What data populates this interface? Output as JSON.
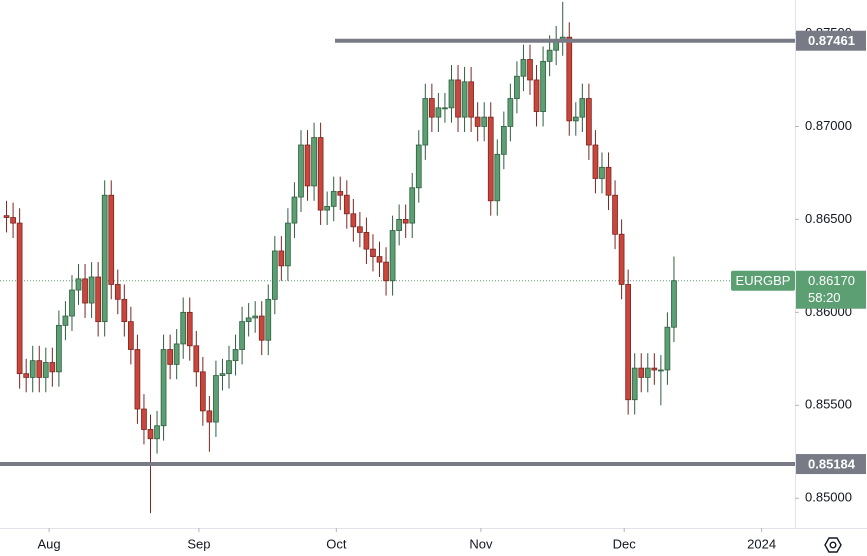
{
  "chart_data": {
    "type": "candlestick",
    "symbol": "EURGBP",
    "countdown": "58:20",
    "last_price": {
      "value": 0.8617,
      "label": "0.86170"
    },
    "levels": [
      0.87461,
      0.85184
    ],
    "level_color": "#787b86",
    "up_color": "#5c9f72",
    "down_color": "#c9463d",
    "last_color": "#5c9f72",
    "xlim": [
      -1,
      120.5
    ],
    "xticks": [
      {
        "value": 6.5,
        "label": "Aug"
      },
      {
        "value": 29.4,
        "label": "Sep"
      },
      {
        "value": 50.4,
        "label": "Oct"
      },
      {
        "value": 72.5,
        "label": "Nov"
      },
      {
        "value": 94.4,
        "label": "Dec"
      },
      {
        "value": 115.4,
        "label": "2024"
      }
    ],
    "ylim": [
      0.8484,
      0.8768
    ],
    "yticks": [
      {
        "value": 0.85,
        "label": "0.85000"
      },
      {
        "value": 0.855,
        "label": "0.85500"
      },
      {
        "value": 0.86,
        "label": "0.86000"
      },
      {
        "value": 0.865,
        "label": "0.86500"
      },
      {
        "value": 0.87,
        "label": "0.87000"
      },
      {
        "value": 0.875,
        "label": "0.87500"
      }
    ],
    "open": [
      0.8652,
      0.8651,
      0.8648,
      0.8567,
      0.8565,
      0.8574,
      0.8565,
      0.8573,
      0.8568,
      0.8593,
      0.8598,
      0.8612,
      0.8618,
      0.8605,
      0.8619,
      0.8595,
      0.8663,
      0.8615,
      0.8607,
      0.8595,
      0.858,
      0.8548,
      0.8537,
      0.8532,
      0.8539,
      0.858,
      0.8572,
      0.8583,
      0.86,
      0.8582,
      0.8568,
      0.8547,
      0.8541,
      0.8566,
      0.8567,
      0.8574,
      0.858,
      0.8595,
      0.8597,
      0.8598,
      0.8585,
      0.8607,
      0.8633,
      0.8625,
      0.8648,
      0.8662,
      0.869,
      0.8668,
      0.8694,
      0.8655,
      0.8657,
      0.8665,
      0.8663,
      0.8653,
      0.8646,
      0.8643,
      0.8634,
      0.863,
      0.8627,
      0.8617,
      0.8644,
      0.865,
      0.8648,
      0.8667,
      0.869,
      0.8715,
      0.8705,
      0.871,
      0.871,
      0.8725,
      0.8705,
      0.8724,
      0.8705,
      0.87,
      0.8705,
      0.866,
      0.8685,
      0.87,
      0.8715,
      0.8727,
      0.8736,
      0.8725,
      0.8708,
      0.8735,
      0.8741,
      0.8746,
      0.8748,
      0.8703,
      0.8705,
      0.8715,
      0.869,
      0.8672,
      0.8678,
      0.8663,
      0.8642,
      0.8615,
      0.8553,
      0.857,
      0.8565,
      0.857,
      0.8569,
      0.8569,
      0.8592
    ],
    "high": [
      0.866,
      0.8659,
      0.8656,
      0.8575,
      0.8582,
      0.8582,
      0.8581,
      0.8581,
      0.8601,
      0.8606,
      0.862,
      0.8626,
      0.8626,
      0.8627,
      0.8627,
      0.8671,
      0.8671,
      0.8623,
      0.8615,
      0.8603,
      0.8588,
      0.8556,
      0.8545,
      0.8547,
      0.8588,
      0.8588,
      0.8591,
      0.8608,
      0.8608,
      0.859,
      0.8576,
      0.8555,
      0.8574,
      0.8575,
      0.8582,
      0.8588,
      0.8603,
      0.8605,
      0.8606,
      0.8606,
      0.8615,
      0.8641,
      0.8641,
      0.8656,
      0.867,
      0.8698,
      0.8698,
      0.8702,
      0.8702,
      0.8665,
      0.8673,
      0.8673,
      0.8671,
      0.8661,
      0.8654,
      0.8651,
      0.8642,
      0.8638,
      0.8635,
      0.8652,
      0.8658,
      0.8658,
      0.8675,
      0.8698,
      0.8723,
      0.8723,
      0.8718,
      0.8718,
      0.8733,
      0.8733,
      0.8732,
      0.8732,
      0.8713,
      0.8713,
      0.8713,
      0.8693,
      0.8708,
      0.8723,
      0.8735,
      0.8744,
      0.8744,
      0.8733,
      0.8743,
      0.8749,
      0.8754,
      0.8767,
      0.8756,
      0.8713,
      0.8723,
      0.8723,
      0.8698,
      0.8686,
      0.8686,
      0.8671,
      0.865,
      0.8623,
      0.8578,
      0.8578,
      0.8578,
      0.8578,
      0.8577,
      0.86,
      0.863
    ],
    "low": [
      0.8643,
      0.864,
      0.8559,
      0.8557,
      0.8557,
      0.8557,
      0.8557,
      0.856,
      0.856,
      0.8585,
      0.859,
      0.8604,
      0.8597,
      0.8597,
      0.8587,
      0.8587,
      0.8607,
      0.8599,
      0.8587,
      0.8572,
      0.854,
      0.8529,
      0.8492,
      0.8524,
      0.8531,
      0.8564,
      0.8564,
      0.8575,
      0.8574,
      0.856,
      0.8539,
      0.8525,
      0.8533,
      0.8558,
      0.8559,
      0.8566,
      0.8572,
      0.8587,
      0.8589,
      0.8577,
      0.8577,
      0.8599,
      0.8617,
      0.8617,
      0.864,
      0.8654,
      0.866,
      0.866,
      0.8647,
      0.8647,
      0.8649,
      0.8655,
      0.8645,
      0.8638,
      0.8635,
      0.8626,
      0.8622,
      0.8619,
      0.8609,
      0.8609,
      0.8636,
      0.864,
      0.864,
      0.8659,
      0.8682,
      0.8697,
      0.8697,
      0.8702,
      0.8702,
      0.8697,
      0.8697,
      0.8697,
      0.8692,
      0.8692,
      0.8652,
      0.8652,
      0.8677,
      0.8692,
      0.8707,
      0.8719,
      0.8717,
      0.87,
      0.87,
      0.8727,
      0.8733,
      0.8738,
      0.8695,
      0.8695,
      0.8697,
      0.8682,
      0.8664,
      0.8664,
      0.8655,
      0.8634,
      0.8607,
      0.8545,
      0.8545,
      0.8557,
      0.8557,
      0.8561,
      0.855,
      0.8561,
      0.8584
    ],
    "close": [
      0.8651,
      0.8648,
      0.8567,
      0.8565,
      0.8574,
      0.8565,
      0.8573,
      0.8568,
      0.8593,
      0.8598,
      0.8612,
      0.8618,
      0.8605,
      0.8619,
      0.8595,
      0.8663,
      0.8615,
      0.8607,
      0.8595,
      0.858,
      0.8548,
      0.8537,
      0.8532,
      0.8539,
      0.858,
      0.8572,
      0.8583,
      0.86,
      0.8582,
      0.8568,
      0.8547,
      0.8541,
      0.8566,
      0.8567,
      0.8574,
      0.858,
      0.8595,
      0.8597,
      0.8598,
      0.8585,
      0.8607,
      0.8633,
      0.8625,
      0.8648,
      0.8662,
      0.869,
      0.8668,
      0.8694,
      0.8655,
      0.8657,
      0.8665,
      0.8663,
      0.8653,
      0.8646,
      0.8643,
      0.8634,
      0.863,
      0.8627,
      0.8617,
      0.8644,
      0.865,
      0.8648,
      0.8667,
      0.869,
      0.8715,
      0.8705,
      0.871,
      0.871,
      0.8725,
      0.8705,
      0.8724,
      0.8705,
      0.87,
      0.8705,
      0.866,
      0.8685,
      0.87,
      0.8715,
      0.8727,
      0.8736,
      0.8725,
      0.8708,
      0.8735,
      0.8741,
      0.8746,
      0.8748,
      0.8703,
      0.8705,
      0.8715,
      0.869,
      0.8672,
      0.8678,
      0.8663,
      0.8642,
      0.8615,
      0.8553,
      0.857,
      0.8565,
      0.857,
      0.8569,
      0.8569,
      0.8592,
      0.8617
    ]
  }
}
